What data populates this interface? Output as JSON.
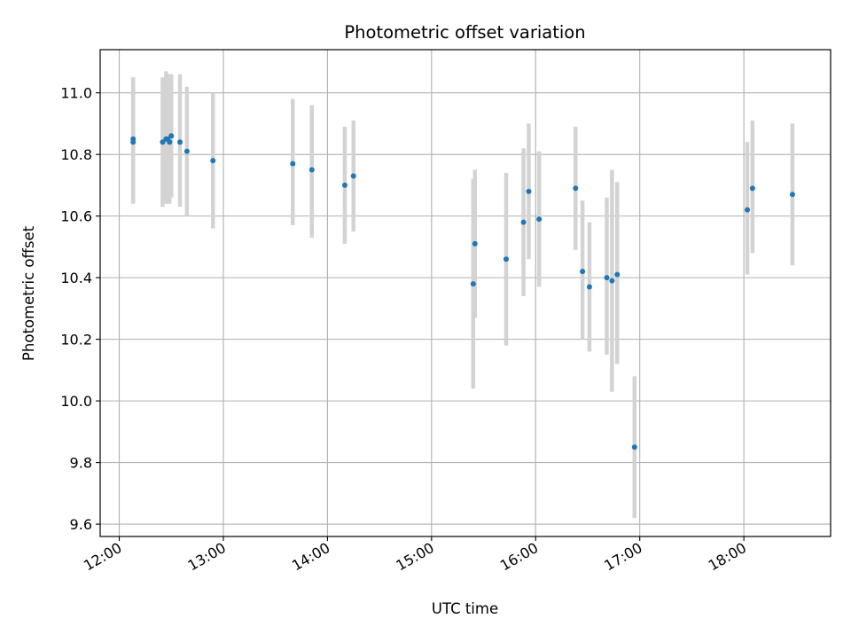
{
  "chart_data": {
    "type": "scatter",
    "title": "Photometric offset variation",
    "xlabel": "UTC time",
    "ylabel": "Photometric offset",
    "x_tick_labels": [
      "12:00",
      "13:00",
      "14:00",
      "15:00",
      "16:00",
      "17:00",
      "18:00"
    ],
    "y_tick_labels": [
      "9.6",
      "9.8",
      "10.0",
      "10.2",
      "10.4",
      "10.6",
      "10.8",
      "11.0"
    ],
    "y_ticks": [
      9.6,
      9.8,
      10.0,
      10.2,
      10.4,
      10.6,
      10.8,
      11.0
    ],
    "xlim": [
      "11:49",
      "18:50"
    ],
    "ylim": [
      9.56,
      11.14
    ],
    "grid": true,
    "marker_color": "#1f77b4",
    "errorbar_color": "#d3d3d3",
    "points": [
      {
        "x": "12:08",
        "y": 10.85,
        "low": 10.65,
        "high": 11.05
      },
      {
        "x": "12:08",
        "y": 10.84,
        "low": 10.64,
        "high": 11.05
      },
      {
        "x": "12:25",
        "y": 10.84,
        "low": 10.63,
        "high": 11.05
      },
      {
        "x": "12:27",
        "y": 10.85,
        "low": 10.64,
        "high": 11.07
      },
      {
        "x": "12:28",
        "y": 10.85,
        "low": 10.64,
        "high": 11.06
      },
      {
        "x": "12:29",
        "y": 10.84,
        "low": 10.64,
        "high": 11.06
      },
      {
        "x": "12:30",
        "y": 10.86,
        "low": 10.66,
        "high": 11.06
      },
      {
        "x": "12:35",
        "y": 10.84,
        "low": 10.63,
        "high": 11.06
      },
      {
        "x": "12:39",
        "y": 10.81,
        "low": 10.6,
        "high": 11.02
      },
      {
        "x": "12:54",
        "y": 10.78,
        "low": 10.56,
        "high": 11.0
      },
      {
        "x": "13:40",
        "y": 10.77,
        "low": 10.57,
        "high": 10.98
      },
      {
        "x": "13:51",
        "y": 10.75,
        "low": 10.53,
        "high": 10.96
      },
      {
        "x": "14:10",
        "y": 10.7,
        "low": 10.51,
        "high": 10.89
      },
      {
        "x": "14:15",
        "y": 10.73,
        "low": 10.55,
        "high": 10.91
      },
      {
        "x": "15:24",
        "y": 10.38,
        "low": 10.04,
        "high": 10.72
      },
      {
        "x": "15:25",
        "y": 10.51,
        "low": 10.27,
        "high": 10.75
      },
      {
        "x": "15:43",
        "y": 10.46,
        "low": 10.18,
        "high": 10.74
      },
      {
        "x": "15:53",
        "y": 10.58,
        "low": 10.34,
        "high": 10.82
      },
      {
        "x": "15:56",
        "y": 10.68,
        "low": 10.46,
        "high": 10.9
      },
      {
        "x": "16:02",
        "y": 10.59,
        "low": 10.37,
        "high": 10.81
      },
      {
        "x": "16:23",
        "y": 10.69,
        "low": 10.49,
        "high": 10.89
      },
      {
        "x": "16:27",
        "y": 10.42,
        "low": 10.2,
        "high": 10.65
      },
      {
        "x": "16:31",
        "y": 10.37,
        "low": 10.16,
        "high": 10.58
      },
      {
        "x": "16:41",
        "y": 10.4,
        "low": 10.15,
        "high": 10.66
      },
      {
        "x": "16:44",
        "y": 10.39,
        "low": 10.03,
        "high": 10.75
      },
      {
        "x": "16:47",
        "y": 10.41,
        "low": 10.12,
        "high": 10.71
      },
      {
        "x": "16:57",
        "y": 9.85,
        "low": 9.62,
        "high": 10.08
      },
      {
        "x": "18:02",
        "y": 10.62,
        "low": 10.41,
        "high": 10.84
      },
      {
        "x": "18:05",
        "y": 10.69,
        "low": 10.48,
        "high": 10.91
      },
      {
        "x": "18:28",
        "y": 10.67,
        "low": 10.44,
        "high": 10.9
      }
    ]
  }
}
